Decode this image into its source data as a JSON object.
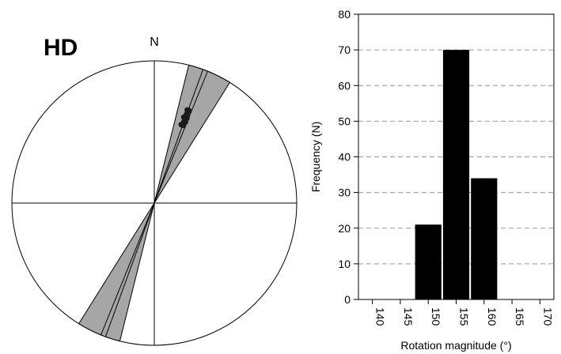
{
  "panel_label": "HD",
  "chart_data": [
    {
      "type": "rose",
      "north_label": "N",
      "petals": [
        {
          "name": "",
          "start_deg": 14,
          "end_deg": 24
        },
        {
          "name": "",
          "start_deg": 194,
          "end_deg": 204
        },
        {
          "name": "",
          "start_deg": 22,
          "end_deg": 32
        },
        {
          "name": "",
          "start_deg": 202,
          "end_deg": 212
        }
      ],
      "mean_axis_deg": 20,
      "data_points_deg": [
        19,
        20,
        21,
        20,
        19.5,
        20.5,
        21,
        19,
        20,
        20.5
      ],
      "colors": {
        "petal_fill": "#a6a6a6",
        "points": "#1a1a1a"
      }
    },
    {
      "type": "bar",
      "xlabel": "Rotation magnitude (°)",
      "ylabel": "Frequency (N)",
      "ylim": [
        0,
        80
      ],
      "yticks": [
        0,
        10,
        20,
        30,
        40,
        50,
        60,
        70,
        80
      ],
      "xticks": [
        "140",
        "145",
        "150",
        "155",
        "160",
        "165",
        "170"
      ],
      "categories": [
        "150",
        "155",
        "160"
      ],
      "values": [
        21,
        70,
        34
      ],
      "grid": "horizontal-dashed",
      "colors": {
        "bar": "#000000",
        "grid": "#999999"
      }
    }
  ]
}
